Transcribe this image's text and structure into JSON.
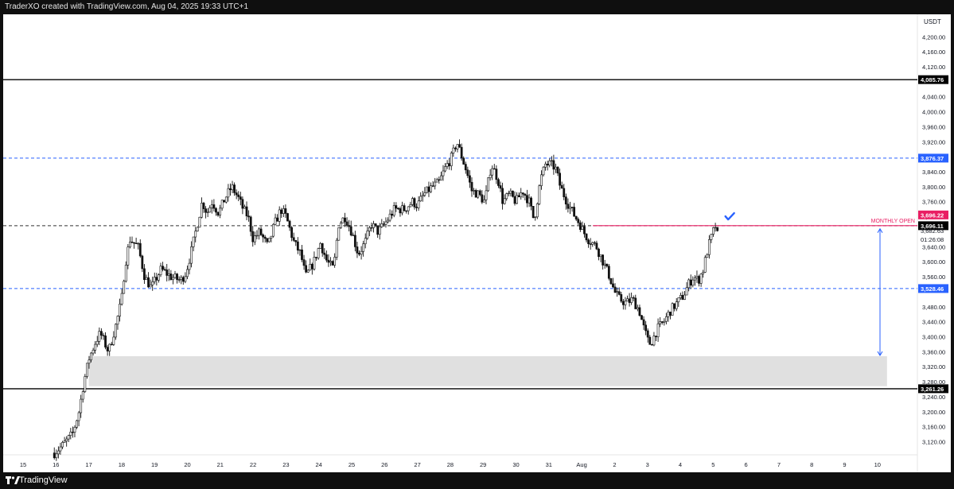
{
  "header": {
    "text": "TraderXO created with TradingView.com, Aug 04, 2025 19:33 UTC+1"
  },
  "footer": {
    "brand": "TradingView"
  },
  "colors": {
    "up": "#ffffff",
    "down": "#111111",
    "wick": "#111111",
    "blue_level": "#2962ff",
    "monthly_open": "#e91e63",
    "zone": "#e0e0e0"
  },
  "chart_data": {
    "type": "candlestick",
    "symbol_currency": "USDT",
    "ylim": [
      3085,
      4260
    ],
    "x_axis_labels": [
      "15",
      "16",
      "17",
      "18",
      "19",
      "20",
      "21",
      "22",
      "23",
      "24",
      "25",
      "26",
      "27",
      "28",
      "29",
      "30",
      "31",
      "Aug",
      "2",
      "3",
      "4",
      "5",
      "6",
      "7",
      "8",
      "9",
      "10"
    ],
    "price_ticks": [
      "4,200.00",
      "4,160.00",
      "4,120.00",
      "4,040.00",
      "4,000.00",
      "3,960.00",
      "3,920.00",
      "3,840.00",
      "3,800.00",
      "3,760.00",
      "3,720.00",
      "3,640.00",
      "3,600.00",
      "3,560.00",
      "3,480.00",
      "3,440.00",
      "3,400.00",
      "3,360.00",
      "3,320.00",
      "3,280.00",
      "3,240.00",
      "3,200.00",
      "3,160.00",
      "3,120.00"
    ],
    "levels": [
      {
        "price": 4085.76,
        "label": "4,085.76",
        "style": "solid-black"
      },
      {
        "price": 3876.37,
        "label": "3,876.37",
        "style": "dashed-blue"
      },
      {
        "price": 3696.11,
        "label": "3,696.11",
        "style": "dashed-black"
      },
      {
        "price": 3528.46,
        "label": "3,528.46",
        "style": "dashed-blue"
      },
      {
        "price": 3261.26,
        "label": "3,261.26",
        "style": "solid-black"
      }
    ],
    "monthly_open": {
      "price": 3696.22,
      "label": "3,696.22",
      "text": "MONTHLY OPEN",
      "start_day": "Aug"
    },
    "current_price": {
      "price": 3682.63,
      "label": "3,682.63",
      "countdown": "01:26:08"
    },
    "demand_zone": {
      "from_day": 17,
      "to_day": "10",
      "low": 3268,
      "high": 3348
    },
    "measure_arrow": {
      "top": 3688,
      "bottom": 3350
    },
    "path_points": [
      [
        15.95,
        3090
      ],
      [
        16.2,
        3110
      ],
      [
        16.5,
        3140
      ],
      [
        16.7,
        3200
      ],
      [
        16.85,
        3280
      ],
      [
        17.0,
        3340
      ],
      [
        17.2,
        3385
      ],
      [
        17.35,
        3410
      ],
      [
        17.6,
        3360
      ],
      [
        17.85,
        3440
      ],
      [
        18.0,
        3500
      ],
      [
        18.1,
        3590
      ],
      [
        18.25,
        3660
      ],
      [
        18.5,
        3640
      ],
      [
        18.7,
        3560
      ],
      [
        18.9,
        3530
      ],
      [
        19.2,
        3580
      ],
      [
        19.5,
        3560
      ],
      [
        19.8,
        3550
      ],
      [
        19.95,
        3570
      ],
      [
        20.1,
        3620
      ],
      [
        20.3,
        3700
      ],
      [
        20.45,
        3760
      ],
      [
        20.6,
        3730
      ],
      [
        20.75,
        3760
      ],
      [
        20.95,
        3730
      ],
      [
        21.15,
        3770
      ],
      [
        21.35,
        3800
      ],
      [
        21.55,
        3770
      ],
      [
        21.7,
        3740
      ],
      [
        21.85,
        3720
      ],
      [
        22.0,
        3660
      ],
      [
        22.2,
        3680
      ],
      [
        22.45,
        3640
      ],
      [
        22.65,
        3700
      ],
      [
        22.85,
        3740
      ],
      [
        23.0,
        3720
      ],
      [
        23.25,
        3650
      ],
      [
        23.45,
        3620
      ],
      [
        23.6,
        3560
      ],
      [
        23.85,
        3600
      ],
      [
        24.05,
        3650
      ],
      [
        24.25,
        3600
      ],
      [
        24.45,
        3580
      ],
      [
        24.6,
        3700
      ],
      [
        24.8,
        3720
      ],
      [
        25.0,
        3680
      ],
      [
        25.2,
        3620
      ],
      [
        25.4,
        3650
      ],
      [
        25.6,
        3700
      ],
      [
        25.8,
        3680
      ],
      [
        26.0,
        3700
      ],
      [
        26.3,
        3740
      ],
      [
        26.6,
        3740
      ],
      [
        26.85,
        3760
      ],
      [
        27.0,
        3750
      ],
      [
        27.2,
        3780
      ],
      [
        27.45,
        3800
      ],
      [
        27.65,
        3810
      ],
      [
        27.85,
        3850
      ],
      [
        28.05,
        3880
      ],
      [
        28.2,
        3920
      ],
      [
        28.35,
        3880
      ],
      [
        28.5,
        3840
      ],
      [
        28.65,
        3790
      ],
      [
        28.85,
        3780
      ],
      [
        29.05,
        3760
      ],
      [
        29.25,
        3860
      ],
      [
        29.45,
        3820
      ],
      [
        29.6,
        3760
      ],
      [
        29.8,
        3780
      ],
      [
        30.0,
        3760
      ],
      [
        30.2,
        3790
      ],
      [
        30.4,
        3760
      ],
      [
        30.55,
        3710
      ],
      [
        30.75,
        3820
      ],
      [
        30.9,
        3860
      ],
      [
        31.05,
        3860
      ],
      [
        31.2,
        3850
      ],
      [
        31.35,
        3800
      ],
      [
        31.55,
        3760
      ],
      [
        31.8,
        3720
      ],
      [
        31.95,
        3700
      ],
      [
        32.05,
        3680
      ],
      [
        32.2,
        3660
      ],
      [
        32.45,
        3640
      ],
      [
        32.65,
        3600
      ],
      [
        32.85,
        3560
      ],
      [
        33.0,
        3520
      ],
      [
        33.15,
        3500
      ],
      [
        33.35,
        3490
      ],
      [
        33.55,
        3500
      ],
      [
        33.75,
        3470
      ],
      [
        33.9,
        3420
      ],
      [
        34.05,
        3380
      ],
      [
        34.15,
        3390
      ],
      [
        34.3,
        3420
      ],
      [
        34.5,
        3440
      ],
      [
        34.7,
        3470
      ],
      [
        34.9,
        3490
      ],
      [
        35.1,
        3510
      ],
      [
        35.25,
        3540
      ],
      [
        35.4,
        3560
      ],
      [
        35.55,
        3550
      ],
      [
        35.7,
        3580
      ],
      [
        35.85,
        3640
      ],
      [
        36.0,
        3680
      ],
      [
        36.08,
        3698
      ],
      [
        36.13,
        3682
      ]
    ]
  }
}
